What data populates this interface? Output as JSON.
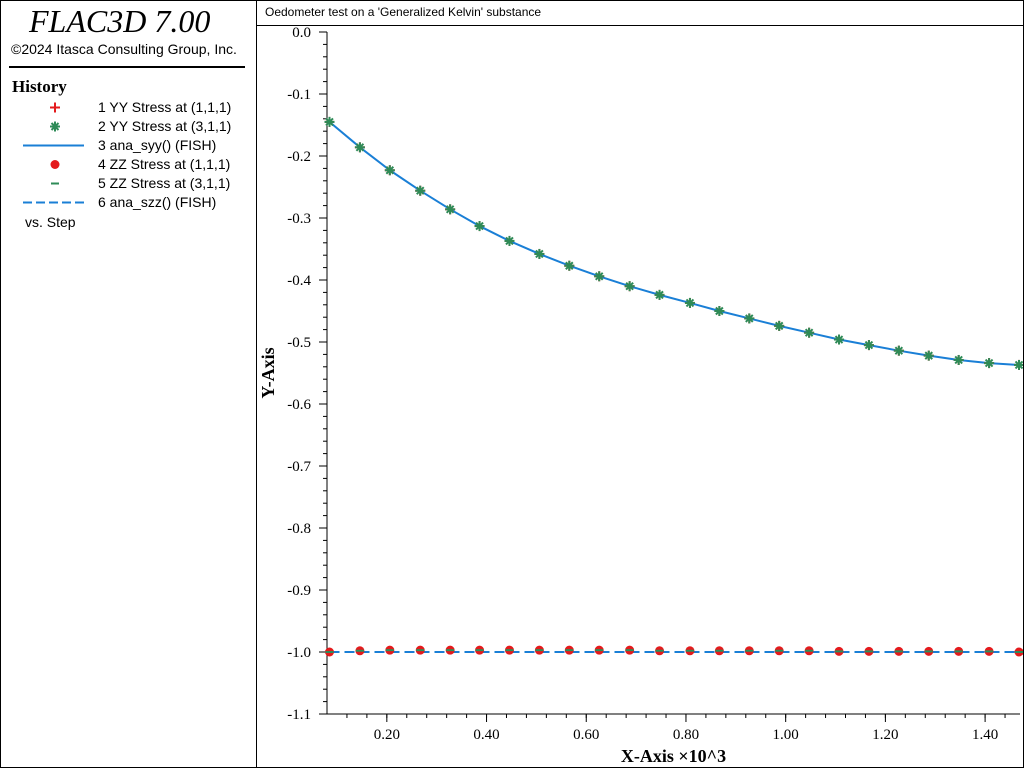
{
  "app": {
    "title": "FLAC3D 7.00",
    "copyright": "©2024 Itasca Consulting Group, Inc."
  },
  "legend": {
    "heading": "History",
    "items": [
      {
        "label": "1 YY Stress at (1,1,1)",
        "symbol": "plus",
        "color": "#e41a1c"
      },
      {
        "label": "2 YY Stress at (3,1,1)",
        "symbol": "star",
        "color": "#2e8b57"
      },
      {
        "label": "3 ana_syy() (FISH)",
        "symbol": "line",
        "color": "#1a7fd6"
      },
      {
        "label": "4 ZZ Stress at (1,1,1)",
        "symbol": "circle",
        "color": "#e41a1c"
      },
      {
        "label": "5 ZZ Stress at (3,1,1)",
        "symbol": "dash",
        "color": "#2e8b57"
      },
      {
        "label": "6 ana_szz() (FISH)",
        "symbol": "dashed-line",
        "color": "#1a7fd6"
      }
    ],
    "vs_label": "vs. Step"
  },
  "chart_data": {
    "type": "line",
    "title": "Oedometer test on a 'Generalized Kelvin' substance",
    "xlabel": "X-Axis ×10^3",
    "ylabel": "Y-Axis",
    "xlim": [
      0.08,
      1.47
    ],
    "ylim": [
      -1.1,
      0.0
    ],
    "x_ticks": [
      0.2,
      0.4,
      0.6,
      0.8,
      1.0,
      1.2,
      1.4
    ],
    "x_tick_labels": [
      "0.20",
      "0.40",
      "0.60",
      "0.80",
      "1.00",
      "1.20",
      "1.40"
    ],
    "y_ticks": [
      0.0,
      -0.1,
      -0.2,
      -0.3,
      -0.4,
      -0.5,
      -0.6,
      -0.7,
      -0.8,
      -0.9,
      -1.0,
      -1.1
    ],
    "y_tick_labels": [
      "0.0",
      "-0.1",
      "-0.2",
      "-0.3",
      "-0.4",
      "-0.5",
      "-0.6",
      "-0.7",
      "-0.8",
      "-0.9",
      "-1.0",
      "-1.1"
    ],
    "x": [
      0.085,
      0.146,
      0.206,
      0.267,
      0.327,
      0.386,
      0.446,
      0.506,
      0.566,
      0.626,
      0.687,
      0.747,
      0.808,
      0.867,
      0.927,
      0.987,
      1.047,
      1.107,
      1.167,
      1.227,
      1.287,
      1.347,
      1.408,
      1.468
    ],
    "series": [
      {
        "name": "1 YY Stress at (1,1,1)",
        "marker": "plus",
        "color": "#e41a1c",
        "values": [
          -0.145,
          -0.186,
          -0.223,
          -0.256,
          -0.286,
          -0.313,
          -0.337,
          -0.358,
          -0.377,
          -0.394,
          -0.41,
          -0.424,
          -0.437,
          -0.45,
          -0.462,
          -0.474,
          -0.485,
          -0.496,
          -0.505,
          -0.514,
          -0.522,
          -0.529,
          -0.534,
          -0.537
        ]
      },
      {
        "name": "2 YY Stress at (3,1,1)",
        "marker": "star",
        "color": "#2e8b57",
        "values": [
          -0.145,
          -0.186,
          -0.223,
          -0.256,
          -0.286,
          -0.313,
          -0.337,
          -0.358,
          -0.377,
          -0.394,
          -0.41,
          -0.424,
          -0.437,
          -0.45,
          -0.462,
          -0.474,
          -0.485,
          -0.496,
          -0.505,
          -0.514,
          -0.522,
          -0.529,
          -0.534,
          -0.537
        ]
      },
      {
        "name": "3 ana_syy() (FISH)",
        "marker": "line",
        "color": "#1a7fd6",
        "values": [
          -0.145,
          -0.186,
          -0.223,
          -0.256,
          -0.286,
          -0.313,
          -0.337,
          -0.358,
          -0.377,
          -0.394,
          -0.41,
          -0.424,
          -0.437,
          -0.45,
          -0.462,
          -0.474,
          -0.485,
          -0.496,
          -0.505,
          -0.514,
          -0.522,
          -0.529,
          -0.534,
          -0.537
        ]
      },
      {
        "name": "4 ZZ Stress at (1,1,1)",
        "marker": "circle",
        "color": "#e41a1c",
        "values": [
          -1.0,
          -0.998,
          -0.997,
          -0.997,
          -0.997,
          -0.997,
          -0.997,
          -0.997,
          -0.997,
          -0.997,
          -0.997,
          -0.998,
          -0.998,
          -0.998,
          -0.998,
          -0.998,
          -0.998,
          -0.999,
          -0.999,
          -0.999,
          -0.999,
          -0.999,
          -0.999,
          -1.0
        ]
      },
      {
        "name": "5 ZZ Stress at (3,1,1)",
        "marker": "dash",
        "color": "#2e8b57",
        "values": [
          -1.0,
          -0.998,
          -0.997,
          -0.997,
          -0.997,
          -0.997,
          -0.997,
          -0.997,
          -0.997,
          -0.997,
          -0.997,
          -0.998,
          -0.998,
          -0.998,
          -0.998,
          -0.998,
          -0.998,
          -0.999,
          -0.999,
          -0.999,
          -0.999,
          -0.999,
          -0.999,
          -1.0
        ]
      },
      {
        "name": "6 ana_szz() (FISH)",
        "marker": "dashed-line",
        "color": "#1a7fd6",
        "values": [
          -1.0,
          -1.0,
          -1.0,
          -1.0,
          -1.0,
          -1.0,
          -1.0,
          -1.0,
          -1.0,
          -1.0,
          -1.0,
          -1.0,
          -1.0,
          -1.0,
          -1.0,
          -1.0,
          -1.0,
          -1.0,
          -1.0,
          -1.0,
          -1.0,
          -1.0,
          -1.0,
          -1.0
        ]
      }
    ],
    "grid": false,
    "legend_placement": "left-panel"
  }
}
